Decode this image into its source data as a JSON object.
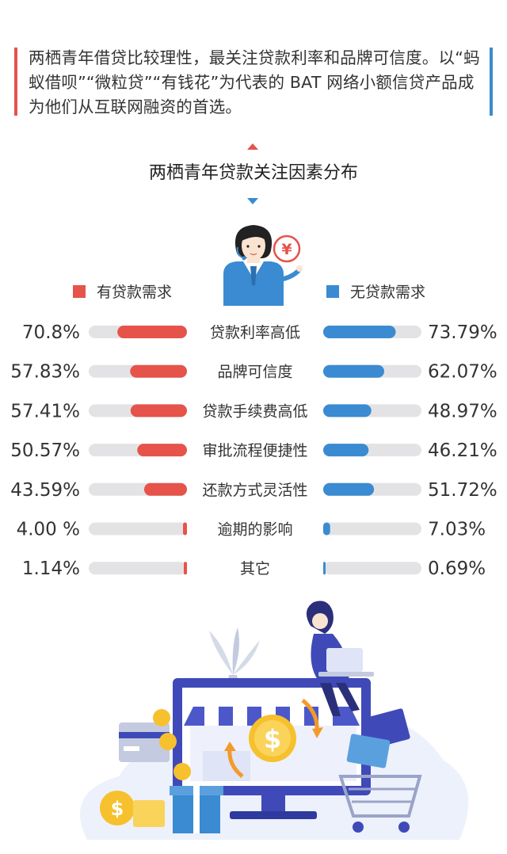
{
  "intro_text": "两栖青年借贷比较理性，最关注贷款利率和品牌可信度。以“蚂蚁借呗”“微粒贷”“有钱花”为代表的 BAT 网络小额信贷产品成为他们从互联网融资的首选。",
  "colors": {
    "has_demand": "#e5534b",
    "no_demand": "#3a8bd1",
    "track": "#e3e3e5",
    "accent_left": "#e5534b",
    "accent_right": "#3a8bd1"
  },
  "illustration_icons": [
    "woman-avatar-icon",
    "yen-coin-icon",
    "laptop-woman-icon",
    "monitor-shop-icon",
    "dollar-coin-icon",
    "shopping-cart-icon",
    "gift-box-icon",
    "plant-icon",
    "credit-card-icon"
  ],
  "chart_data": {
    "type": "bar",
    "title": "两栖青年贷款关注因素分布",
    "legend_placement": "top",
    "grid": false,
    "xlim": [
      0,
      100
    ],
    "categories": [
      "贷款利率高低",
      "品牌可信度",
      "贷款手续费高低",
      "审批流程便捷性",
      "还款方式灵活性",
      "逾期的影响",
      "其它"
    ],
    "series": [
      {
        "name": "有贷款需求",
        "values": [
          70.8,
          57.83,
          57.41,
          50.57,
          43.59,
          4.0,
          1.14
        ],
        "labels": [
          "70.8%",
          "57.83%",
          "57.41%",
          "50.57%",
          "43.59%",
          "4.00 %",
          "1.14%"
        ]
      },
      {
        "name": "无贷款需求",
        "values": [
          73.79,
          62.07,
          48.97,
          46.21,
          51.72,
          7.03,
          0.69
        ],
        "labels": [
          "73.79%",
          "62.07%",
          "48.97%",
          "46.21%",
          "51.72%",
          "7.03%",
          "0.69%"
        ]
      }
    ]
  }
}
